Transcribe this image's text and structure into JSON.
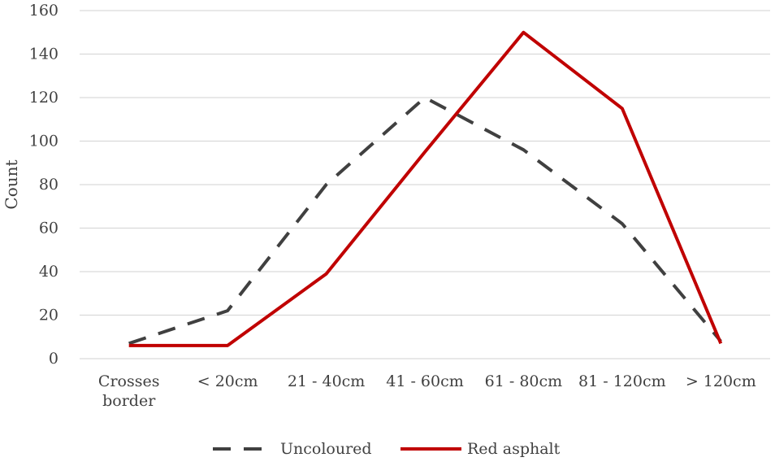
{
  "chart_data": {
    "type": "line",
    "categories": [
      [
        "Crosses",
        "border"
      ],
      [
        "< 20cm"
      ],
      [
        "21 - 40cm"
      ],
      [
        "41 - 60cm"
      ],
      [
        "61 - 80cm"
      ],
      [
        "81 - 120cm"
      ],
      [
        "> 120cm"
      ]
    ],
    "series": [
      {
        "name": "Uncoloured",
        "values": [
          7,
          22,
          80,
          120,
          96,
          62,
          8
        ],
        "color": "#404040",
        "style": "dashed"
      },
      {
        "name": "Red asphalt",
        "values": [
          6,
          6,
          39,
          95,
          150,
          115,
          7
        ],
        "color": "#c00000",
        "style": "solid"
      }
    ],
    "ylabel": "Count",
    "ylim": [
      0,
      160
    ],
    "yticks": [
      0,
      20,
      40,
      60,
      80,
      100,
      120,
      140,
      160
    ],
    "grid": true,
    "legend": "bottom"
  }
}
